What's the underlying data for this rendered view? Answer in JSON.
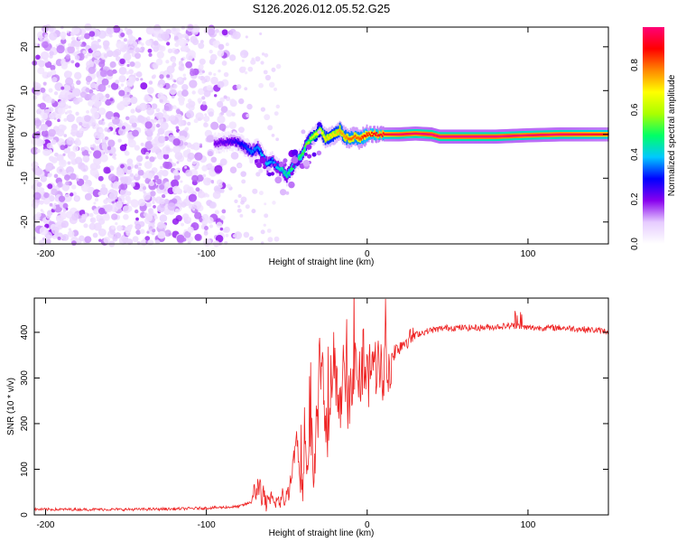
{
  "title": "S126.2026.012.05.52.G25",
  "chart_data": [
    {
      "type": "heatmap",
      "title": "S126.2026.012.05.52.G25",
      "xlabel": "Height of straight line (km)",
      "ylabel": "Frequency (Hz)",
      "xlim": [
        -207,
        150
      ],
      "ylim": [
        -25,
        24.5
      ],
      "xticks": [
        -200,
        -100,
        0,
        100
      ],
      "yticks": [
        -20,
        -10,
        0,
        10,
        20
      ],
      "colorbar": {
        "label": "Normalized spectral amplitude",
        "range": [
          0.0,
          0.97
        ],
        "ticks": [
          0.0,
          0.2,
          0.4,
          0.6,
          0.8
        ],
        "colormap": [
          "#ffffff",
          "#e6ccff",
          "#8800ee",
          "#0000ff",
          "#00c8ff",
          "#00ff66",
          "#aaff00",
          "#ffff00",
          "#ff8800",
          "#ff0000",
          "#ff0077"
        ]
      },
      "ridge": {
        "x": [
          -95,
          -83,
          -77,
          -72,
          -68,
          -65,
          -62,
          -59,
          -56,
          -53,
          -50,
          -47,
          -44,
          -41,
          -38,
          -35,
          -32,
          -29,
          -26,
          -23,
          -20,
          -17,
          -14,
          -11,
          -8,
          -5,
          -2,
          1,
          5,
          10,
          20,
          30,
          40,
          45,
          50,
          60,
          80,
          100,
          120,
          150
        ],
        "freq": [
          -2,
          -1.5,
          -2.5,
          -4,
          -3,
          -5,
          -7,
          -6,
          -7.5,
          -8,
          -9.5,
          -8,
          -6,
          -5,
          -2.5,
          -1,
          0,
          1,
          -1,
          -0.5,
          0,
          1,
          -0.5,
          -1,
          -0.5,
          -1,
          -0.5,
          0,
          0,
          0,
          0,
          0.2,
          0,
          -0.5,
          -0.5,
          -0.5,
          -0.5,
          -0.2,
          0,
          0
        ],
        "amplitude": [
          0.2,
          0.25,
          0.3,
          0.35,
          0.35,
          0.4,
          0.4,
          0.35,
          0.4,
          0.45,
          0.45,
          0.5,
          0.5,
          0.5,
          0.55,
          0.6,
          0.65,
          0.65,
          0.7,
          0.7,
          0.7,
          0.75,
          0.75,
          0.8,
          0.8,
          0.8,
          0.85,
          0.85,
          0.9,
          0.9,
          0.95,
          0.95,
          0.97,
          0.97,
          0.97,
          0.97,
          0.97,
          0.95,
          0.95,
          0.9
        ]
      },
      "noise_region": {
        "x_range": [
          -207,
          -70
        ],
        "amplitude_range": [
          0.05,
          0.15
        ]
      }
    },
    {
      "type": "line",
      "xlabel": "Height of straight line (km)",
      "ylabel": "SNR (10 * v/v)",
      "xlim": [
        -207,
        150
      ],
      "ylim": [
        0,
        475
      ],
      "xticks": [
        -200,
        -100,
        0,
        100
      ],
      "yticks": [
        0,
        100,
        200,
        300,
        400
      ],
      "color": "#ee2222",
      "series": [
        {
          "name": "SNR",
          "x": [
            -207,
            -180,
            -150,
            -120,
            -100,
            -80,
            -72,
            -70,
            -67,
            -65,
            -62,
            -58,
            -55,
            -50,
            -46,
            -44,
            -42,
            -40,
            -37,
            -35,
            -33,
            -30,
            -28,
            -25,
            -22,
            -20,
            -18,
            -16,
            -14,
            -12,
            -10,
            -8,
            -6,
            -4,
            -2,
            0,
            2,
            5,
            10,
            15,
            20,
            25,
            30,
            40,
            50,
            60,
            70,
            80,
            90,
            95,
            100,
            110,
            120,
            130,
            140,
            150
          ],
          "values": [
            12,
            12,
            12,
            13,
            15,
            18,
            28,
            45,
            70,
            35,
            25,
            30,
            28,
            40,
            110,
            180,
            90,
            60,
            140,
            180,
            90,
            250,
            320,
            180,
            300,
            360,
            200,
            260,
            330,
            230,
            300,
            330,
            320,
            300,
            340,
            290,
            330,
            340,
            320,
            350,
            370,
            385,
            395,
            405,
            410,
            410,
            410,
            412,
            415,
            412,
            410,
            410,
            410,
            408,
            405,
            402
          ]
        }
      ]
    }
  ]
}
